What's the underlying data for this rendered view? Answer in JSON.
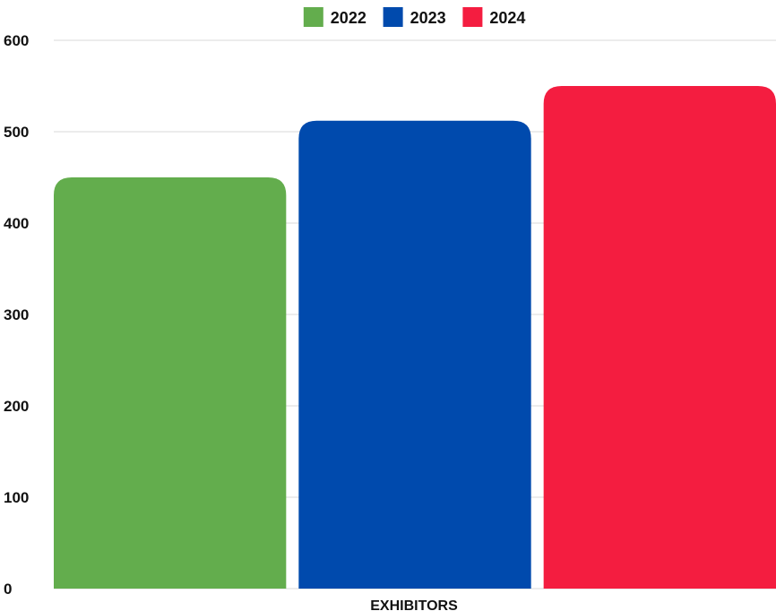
{
  "chart_data": {
    "type": "bar",
    "categories": [
      "EXHIBITORS"
    ],
    "series": [
      {
        "name": "2022",
        "values": [
          450
        ],
        "color": "#63ad4d"
      },
      {
        "name": "2023",
        "values": [
          512
        ],
        "color": "#004aad"
      },
      {
        "name": "2024",
        "values": [
          550
        ],
        "color": "#f41d40"
      }
    ],
    "ylim": [
      0,
      600
    ],
    "yticks": [
      "0",
      "100",
      "200",
      "300",
      "400",
      "500",
      "600"
    ],
    "grid": true,
    "legend": "top-center"
  }
}
